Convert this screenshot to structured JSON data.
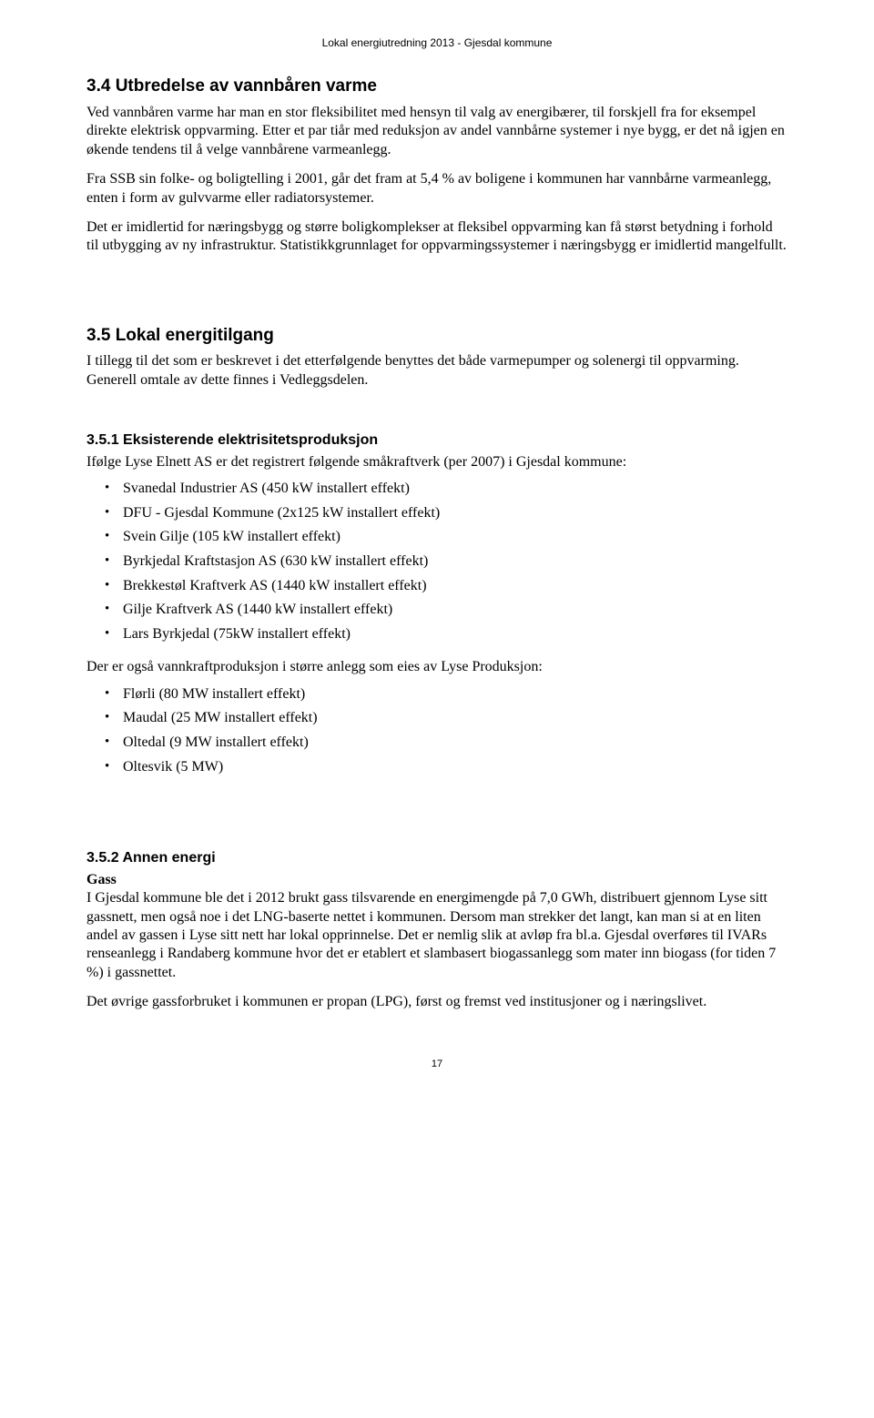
{
  "header": "Lokal energiutredning 2013  -  Gjesdal kommune",
  "sec34": {
    "title": "3.4    Utbredelse av vannbåren varme",
    "p1": "Ved vannbåren varme har man en stor fleksibilitet med hensyn til valg av energibærer, til forskjell fra for eksempel direkte elektrisk oppvarming. Etter et par tiår med reduksjon av andel vannbårne systemer i nye bygg, er det nå igjen en økende tendens til å velge vannbårene varmeanlegg.",
    "p2": "Fra SSB sin folke- og boligtelling i 2001, går det fram at 5,4 % av boligene i kommunen har vannbårne varmeanlegg, enten i form av gulvvarme eller radiatorsystemer.",
    "p3": "Det er imidlertid for næringsbygg og større boligkomplekser at fleksibel oppvarming kan få størst betydning i forhold til utbygging av ny infrastruktur. Statistikkgrunnlaget for oppvarmingssystemer i næringsbygg er imidlertid mangelfullt."
  },
  "sec35": {
    "title": "3.5      Lokal energitilgang",
    "intro": "I tillegg til det som er beskrevet i det etterfølgende benyttes det både varmepumper og solenergi til oppvarming. Generell omtale av dette finnes i Vedleggsdelen."
  },
  "sec351": {
    "title": "3.5.1    Eksisterende elektrisitetsproduksjon",
    "intro": "Ifølge Lyse Elnett AS er det registrert følgende småkraftverk (per 2007) i Gjesdal kommune:",
    "list1": [
      "Svanedal Industrier AS (450 kW installert effekt)",
      "DFU - Gjesdal Kommune (2x125 kW installert effekt)",
      "Svein Gilje (105 kW installert effekt)",
      "Byrkjedal Kraftstasjon AS (630 kW installert effekt)",
      "Brekkestøl Kraftverk AS (1440 kW installert effekt)",
      "Gilje Kraftverk AS (1440 kW installert effekt)",
      "Lars Byrkjedal (75kW installert effekt)"
    ],
    "mid": "Der er også vannkraftproduksjon i større anlegg som eies av Lyse Produksjon:",
    "list2": [
      "Flørli (80 MW installert effekt)",
      "Maudal (25 MW installert effekt)",
      "Oltedal (9 MW installert effekt)",
      "Oltesvik (5 MW)"
    ]
  },
  "sec352": {
    "title": "3.5.2    Annen energi",
    "gass_label": "Gass",
    "p1": "I Gjesdal kommune ble det i 2012 brukt gass tilsvarende en energimengde på 7,0 GWh, distribuert gjennom Lyse sitt gassnett, men også noe i det LNG-baserte nettet i kommunen. Dersom man strekker det langt, kan man si at en liten andel av gassen i Lyse sitt nett har lokal opprinnelse. Det er nemlig slik at avløp fra bl.a. Gjesdal overføres til IVARs renseanlegg i Randaberg kommune hvor det er etablert et slambasert biogassanlegg som mater inn biogass (for tiden 7 %) i gassnettet.",
    "p2": "Det øvrige gassforbruket i kommunen er propan (LPG), først og fremst ved institusjoner og i næringslivet."
  },
  "page_number": "17"
}
